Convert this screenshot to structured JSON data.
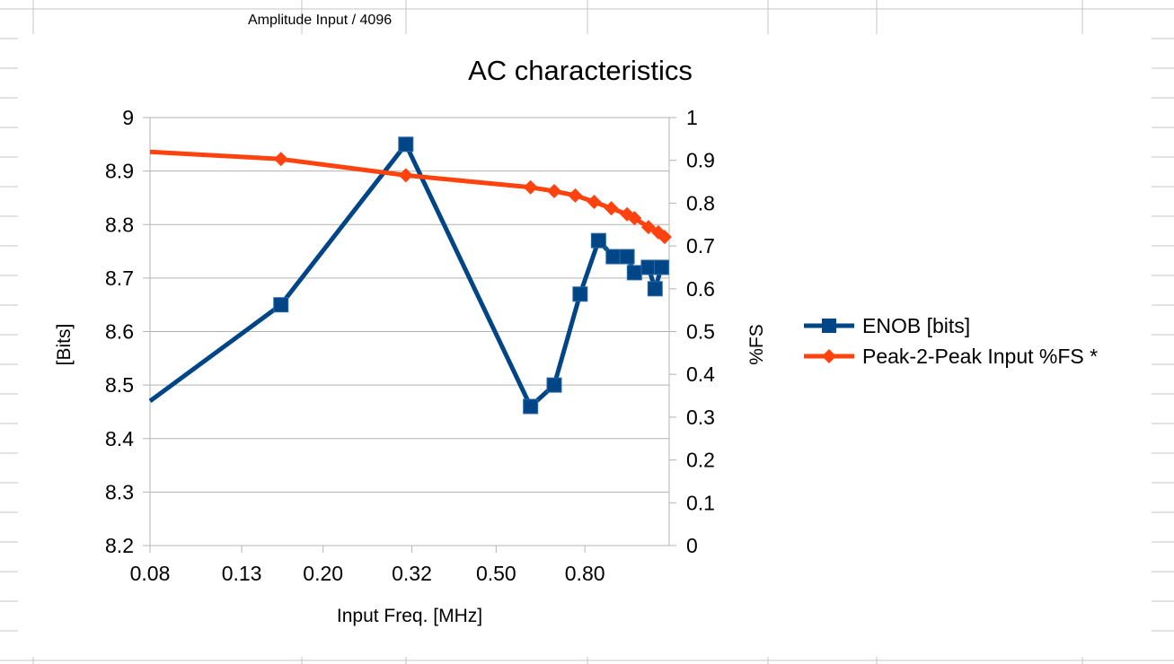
{
  "sheet": {
    "cell_text": "Amplitude Input / 4096"
  },
  "chart_data": {
    "type": "line",
    "title": "AC characteristics",
    "xlabel": "Input Freq. [MHz]",
    "ylabel": "[Bits]",
    "y2label": "%FS",
    "x_scale": "log",
    "x_ticks": [
      "0.08",
      "0.13",
      "0.20",
      "0.32",
      "0.50",
      "0.80"
    ],
    "xlim": [
      0.08,
      1.25
    ],
    "ylim": [
      8.2,
      9.0
    ],
    "y_ticks": [
      "8.2",
      "8.3",
      "8.4",
      "8.5",
      "8.6",
      "8.7",
      "8.8",
      "8.9",
      "9"
    ],
    "y2lim": [
      0,
      1
    ],
    "y2_ticks": [
      "0",
      "0.1",
      "0.2",
      "0.3",
      "0.4",
      "0.5",
      "0.6",
      "0.7",
      "0.8",
      "0.9",
      "1"
    ],
    "grid": true,
    "legend": "right",
    "colors": {
      "enob": "#004586",
      "p2p": "#ff420e"
    },
    "series": [
      {
        "name": "ENOB [bits]",
        "axis": "left",
        "marker": "square",
        "x": [
          0.08,
          0.16,
          0.31,
          0.6,
          0.68,
          0.78,
          0.86,
          0.93,
          1.0,
          1.04,
          1.12,
          1.16,
          1.2
        ],
        "y": [
          8.47,
          8.65,
          8.95,
          8.46,
          8.5,
          8.67,
          8.77,
          8.74,
          8.74,
          8.71,
          8.72,
          8.68,
          8.72
        ],
        "markers": [
          false,
          true,
          true,
          true,
          true,
          true,
          true,
          true,
          true,
          true,
          true,
          true,
          true
        ]
      },
      {
        "name": "Peak-2-Peak Input %FS *",
        "axis": "right",
        "marker": "diamond",
        "x": [
          0.08,
          0.16,
          0.31,
          0.6,
          0.68,
          0.76,
          0.84,
          0.92,
          1.0,
          1.04,
          1.12,
          1.18,
          1.22
        ],
        "y": [
          0.92,
          0.903,
          0.865,
          0.837,
          0.828,
          0.818,
          0.803,
          0.788,
          0.774,
          0.765,
          0.744,
          0.732,
          0.721
        ],
        "markers": [
          false,
          true,
          true,
          true,
          true,
          true,
          true,
          true,
          true,
          true,
          true,
          true,
          true
        ]
      }
    ]
  }
}
